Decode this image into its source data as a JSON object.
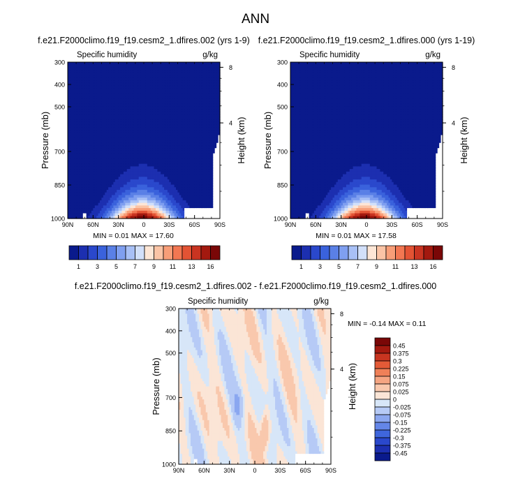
{
  "figure": {
    "title": "ANN"
  },
  "chart_data": [
    {
      "type": "heatmap",
      "panel": "left",
      "title": "f.e21.F2000climo.f19_f19.cesm2_1.dfires.002 (yrs 1-9)",
      "subtitle_left": "Specific humidity",
      "units": "g/kg",
      "ylabel": "Pressure (mb)",
      "y2label": "Height (km)",
      "xtick_labels": [
        "90N",
        "60N",
        "30N",
        "0",
        "30S",
        "60S",
        "90S"
      ],
      "ytick_labels": [
        "300",
        "400",
        "500",
        "700",
        "850",
        "1000"
      ],
      "ytick_values": [
        300,
        400,
        500,
        700,
        850,
        1000
      ],
      "y2tick_labels": [
        "8",
        "4"
      ],
      "y2tick_values": [
        8,
        4
      ],
      "stats_text": "MIN =  0.01   MAX =  17.60",
      "min": 0.01,
      "max": 17.6,
      "colorbar_labels": [
        "1",
        "3",
        "5",
        "7",
        "9",
        "11",
        "13",
        "16"
      ],
      "levels": [
        1,
        2,
        3,
        4,
        5,
        6,
        7,
        8,
        9,
        10,
        11,
        12,
        13,
        14,
        16
      ]
    },
    {
      "type": "heatmap",
      "panel": "right",
      "title": "f.e21.F2000climo.f19_f19.cesm2_1.dfires.000 (yrs 1-19)",
      "subtitle_left": "Specific humidity",
      "units": "g/kg",
      "ylabel": "Pressure (mb)",
      "y2label": "Height (km)",
      "xtick_labels": [
        "90N",
        "60N",
        "30N",
        "0",
        "30S",
        "60S",
        "90S"
      ],
      "ytick_labels": [
        "300",
        "400",
        "500",
        "700",
        "850",
        "1000"
      ],
      "ytick_values": [
        300,
        400,
        500,
        700,
        850,
        1000
      ],
      "y2tick_labels": [
        "8",
        "4"
      ],
      "y2tick_values": [
        8,
        4
      ],
      "stats_text": "MIN =  0.01   MAX =  17.58",
      "min": 0.01,
      "max": 17.58,
      "colorbar_labels": [
        "1",
        "3",
        "5",
        "7",
        "9",
        "11",
        "13",
        "16"
      ],
      "levels": [
        1,
        2,
        3,
        4,
        5,
        6,
        7,
        8,
        9,
        10,
        11,
        12,
        13,
        14,
        16
      ]
    },
    {
      "type": "heatmap",
      "panel": "difference",
      "title": "f.e21.F2000climo.f19_f19.cesm2_1.dfires.002 - f.e21.F2000climo.f19_f19.cesm2_1.dfires.000",
      "subtitle_left": "Specific humidity",
      "units": "g/kg",
      "ylabel": "Pressure (mb)",
      "y2label": "Height (km)",
      "xtick_labels": [
        "90N",
        "60N",
        "30N",
        "0",
        "30S",
        "60S",
        "90S"
      ],
      "ytick_labels": [
        "300",
        "400",
        "500",
        "700",
        "850",
        "1000"
      ],
      "ytick_values": [
        300,
        400,
        500,
        700,
        850,
        1000
      ],
      "y2tick_labels": [
        "8",
        "4"
      ],
      "y2tick_values": [
        8,
        4
      ],
      "stats_text": "MIN = -0.14   MAX =  0.11",
      "min": -0.14,
      "max": 0.11,
      "colorbar_labels": [
        "0.45",
        "0.375",
        "0.3",
        "0.225",
        "0.15",
        "0.075",
        "0.025",
        "0",
        "-0.025",
        "-0.075",
        "-0.15",
        "-0.225",
        "-0.3",
        "-0.375",
        "-0.45"
      ],
      "levels": [
        0.45,
        0.375,
        0.3,
        0.225,
        0.15,
        0.075,
        0.025,
        0,
        -0.025,
        -0.075,
        -0.15,
        -0.225,
        -0.3,
        -0.375,
        -0.45
      ]
    }
  ],
  "colors": {
    "humidity_scale": [
      "#0a1a8c",
      "#1c2fb0",
      "#2a48cc",
      "#3a62dc",
      "#5a80e6",
      "#7f9ff0",
      "#a8c0f6",
      "#d2e0fa",
      "#fde6d6",
      "#fbc4a6",
      "#f89e78",
      "#f27752",
      "#e35334",
      "#c93421",
      "#a3190f",
      "#7a0707"
    ],
    "diff_scale": [
      "#0a1a8c",
      "#1c2fb0",
      "#2a48cc",
      "#3f66dc",
      "#6486e8",
      "#8ba7f0",
      "#b6caf6",
      "#d7e6f8",
      "#fbe5d6",
      "#f9c8ad",
      "#f5a582",
      "#ef8058",
      "#e35a37",
      "#c83520",
      "#a3190f",
      "#7a0707"
    ],
    "missing": "#ffffff",
    "axis": "#000000"
  }
}
